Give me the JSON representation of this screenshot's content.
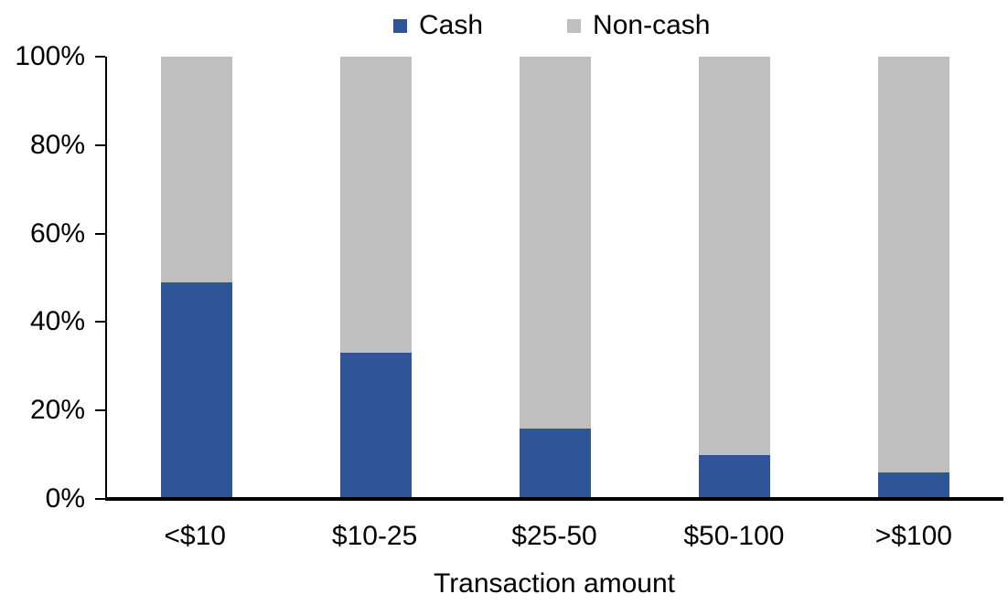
{
  "chart_data": {
    "type": "bar",
    "stacked": true,
    "stacked_total": 100,
    "title": "",
    "xlabel": "Transaction amount",
    "ylabel": "",
    "categories": [
      "<$10",
      "$10-25",
      "$25-50",
      "$50-100",
      ">$100"
    ],
    "series": [
      {
        "name": "Cash",
        "color": "#2F5597",
        "values": [
          49,
          33,
          16,
          10,
          6
        ]
      },
      {
        "name": "Non-cash",
        "color": "#BFBFBF",
        "values": [
          51,
          67,
          84,
          90,
          94
        ]
      }
    ],
    "y_axis": {
      "min": 0,
      "max": 100,
      "tick_step": 20,
      "tick_values": [
        0,
        20,
        40,
        60,
        80,
        100
      ],
      "tick_labels": [
        "0%",
        "20%",
        "40%",
        "60%",
        "80%",
        "100%"
      ]
    },
    "legend_position": "top-center",
    "grid": false,
    "colors": {
      "background": "#FFFFFF",
      "axis": "#000000",
      "text": "#000000"
    }
  }
}
